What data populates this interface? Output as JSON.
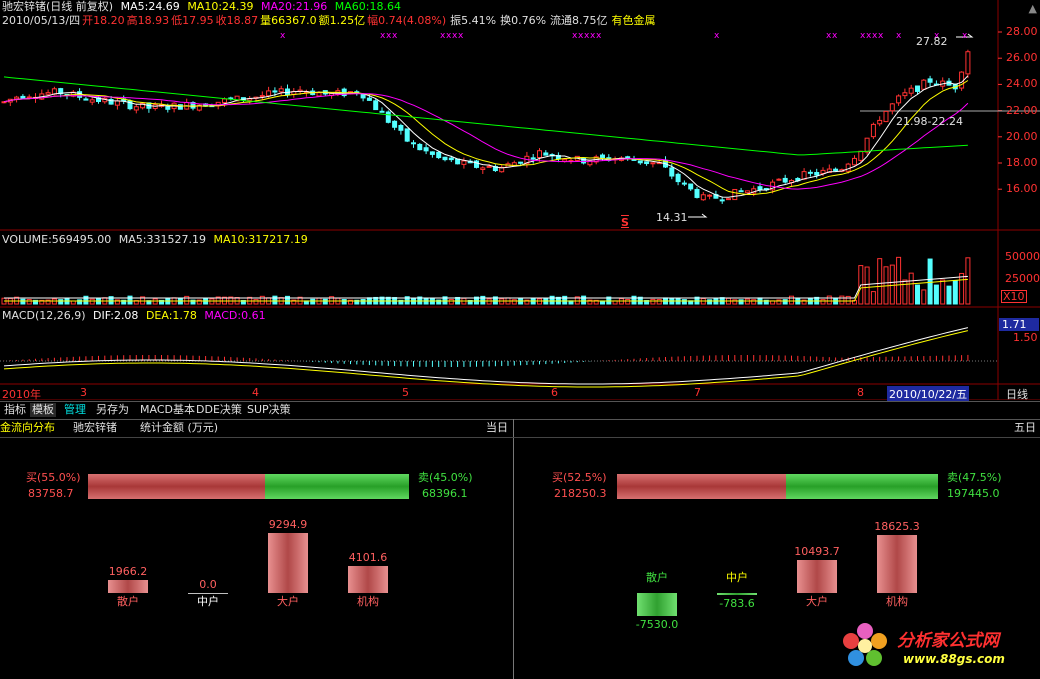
{
  "header": {
    "title": "驰宏锌锗(日线 前复权)",
    "ma5": "MA5:24.69",
    "ma10": "MA10:24.39",
    "ma20": "MA20:21.96",
    "ma60": "MA60:18.64",
    "info": {
      "date": "2010/05/13/四",
      "open": "开18.20",
      "high": "高18.93",
      "low": "低17.95",
      "close": "收18.87",
      "volume": "量66367.0",
      "amount": "额1.25亿",
      "change": "幅0.74(4.08%)",
      "amplitude": "振5.41%",
      "turnover": "换0.76%",
      "float": "流通8.75亿",
      "sector": "有色金属"
    }
  },
  "price_axis": [
    "28.00",
    "26.00",
    "24.00",
    "22.00",
    "20.00",
    "18.00",
    "16.00"
  ],
  "annotations": {
    "high_price": "27.82",
    "low_price": "14.31",
    "range": "21.98-22.24",
    "signal": "S"
  },
  "volume": {
    "label": "VOLUME:569495.00",
    "ma5": "MA5:331527.19",
    "ma10": "MA10:317217.19",
    "axis": [
      "50000",
      "25000"
    ],
    "unit": "X10"
  },
  "macd": {
    "label": "MACD(12,26,9)",
    "dif": "DIF:2.08",
    "dea": "DEA:1.78",
    "macd": "MACD:0.61",
    "axis": [
      "1.71",
      "1.50"
    ]
  },
  "time_axis": {
    "year": "2010年",
    "months": [
      "3",
      "4",
      "5",
      "6",
      "7",
      "8"
    ],
    "current_date": "2010/10/22/五",
    "period": "日线"
  },
  "tabs": [
    {
      "label": "指标"
    },
    {
      "label": "模板"
    },
    {
      "label": "管理"
    },
    {
      "label": "另存为"
    },
    {
      "label": "MACD基本"
    },
    {
      "label": "DDE决策"
    },
    {
      "label": "SUP决策"
    }
  ],
  "fund_flow": {
    "title": "金流向分布",
    "stock": "驰宏锌锗",
    "unit_label": "统计金额 (万元)",
    "today": {
      "label": "当日",
      "buy_label": "买(55.0%)",
      "buy_value": "83758.7",
      "sell_label": "卖(45.0%)",
      "sell_value": "68396.1",
      "buy_ratio": 0.55,
      "bars": [
        {
          "name": "散户",
          "value": "1966.2",
          "v": 1966.2
        },
        {
          "name": "中户",
          "value": "0.0",
          "v": 0
        },
        {
          "name": "大户",
          "value": "9294.9",
          "v": 9294.9
        },
        {
          "name": "机构",
          "value": "4101.6",
          "v": 4101.6
        }
      ]
    },
    "five_day": {
      "label": "五日",
      "buy_label": "买(52.5%)",
      "buy_value": "218250.3",
      "sell_label": "卖(47.5%)",
      "sell_value": "197445.0",
      "buy_ratio": 0.525,
      "bars": [
        {
          "name": "散户",
          "value": "-7530.0",
          "v": -7530.0
        },
        {
          "name": "中户",
          "value": "-783.6",
          "v": -783.6
        },
        {
          "name": "大户",
          "value": "10493.7",
          "v": 10493.7
        },
        {
          "name": "机构",
          "value": "18625.3",
          "v": 18625.3
        }
      ]
    }
  },
  "watermark": {
    "name": "分析家公式网",
    "url": "www.88gs.com"
  },
  "colors": {
    "up": "#ff3232",
    "down": "#54ffff",
    "ma5": "#ffffff",
    "ma10": "#ffff00",
    "ma20": "#ff00ff",
    "ma60": "#00ff00",
    "buy_bar": "#c85050",
    "sell_bar": "#40b840"
  }
}
